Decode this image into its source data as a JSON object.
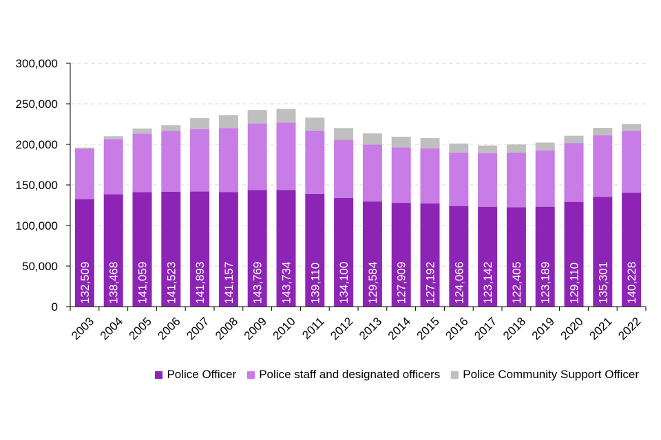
{
  "chart_data": {
    "type": "bar",
    "stacked": true,
    "title": "",
    "xlabel": "",
    "ylabel": "",
    "ylim": [
      0,
      300000
    ],
    "y_ticks": [
      "0",
      "50,000",
      "100,000",
      "150,000",
      "200,000",
      "250,000",
      "300,000"
    ],
    "y_tick_values": [
      0,
      50000,
      100000,
      150000,
      200000,
      250000,
      300000
    ],
    "grid": true,
    "legend_position": "bottom",
    "categories": [
      "2003",
      "2004",
      "2005",
      "2006",
      "2007",
      "2008",
      "2009",
      "2010",
      "2011",
      "2012",
      "2013",
      "2014",
      "2015",
      "2016",
      "2017",
      "2018",
      "2019",
      "2020",
      "2021",
      "2022"
    ],
    "series": [
      {
        "name": "Police Officer",
        "color": "#8e24b5",
        "values": [
          132509,
          138468,
          141059,
          141523,
          141893,
          141157,
          143769,
          143734,
          139110,
          134100,
          129584,
          127909,
          127192,
          124066,
          123142,
          122405,
          123189,
          129110,
          135301,
          140228
        ],
        "labels": [
          "132,509",
          "138,468",
          "141,059",
          "141,523",
          "141,893",
          "141,157",
          "143,769",
          "143,734",
          "139,110",
          "134,100",
          "129,584",
          "127,909",
          "127,192",
          "124,066",
          "123,142",
          "122,405",
          "123,189",
          "129,110",
          "135,301",
          "140,228"
        ]
      },
      {
        "name": "Police staff and designated officers",
        "color": "#c77ce6",
        "values": [
          62000,
          68000,
          72000,
          75000,
          77000,
          79000,
          82000,
          83000,
          78000,
          71500,
          70000,
          68500,
          68000,
          66000,
          66000,
          67500,
          69500,
          72500,
          76000,
          76500
        ]
      },
      {
        "name": "Police Community Support Officer",
        "color": "#bfbfbf",
        "values": [
          1500,
          3500,
          6500,
          7000,
          13500,
          16000,
          16500,
          17000,
          16000,
          14500,
          14000,
          13000,
          12500,
          11000,
          9500,
          10000,
          9500,
          9000,
          9000,
          8500
        ]
      }
    ]
  }
}
